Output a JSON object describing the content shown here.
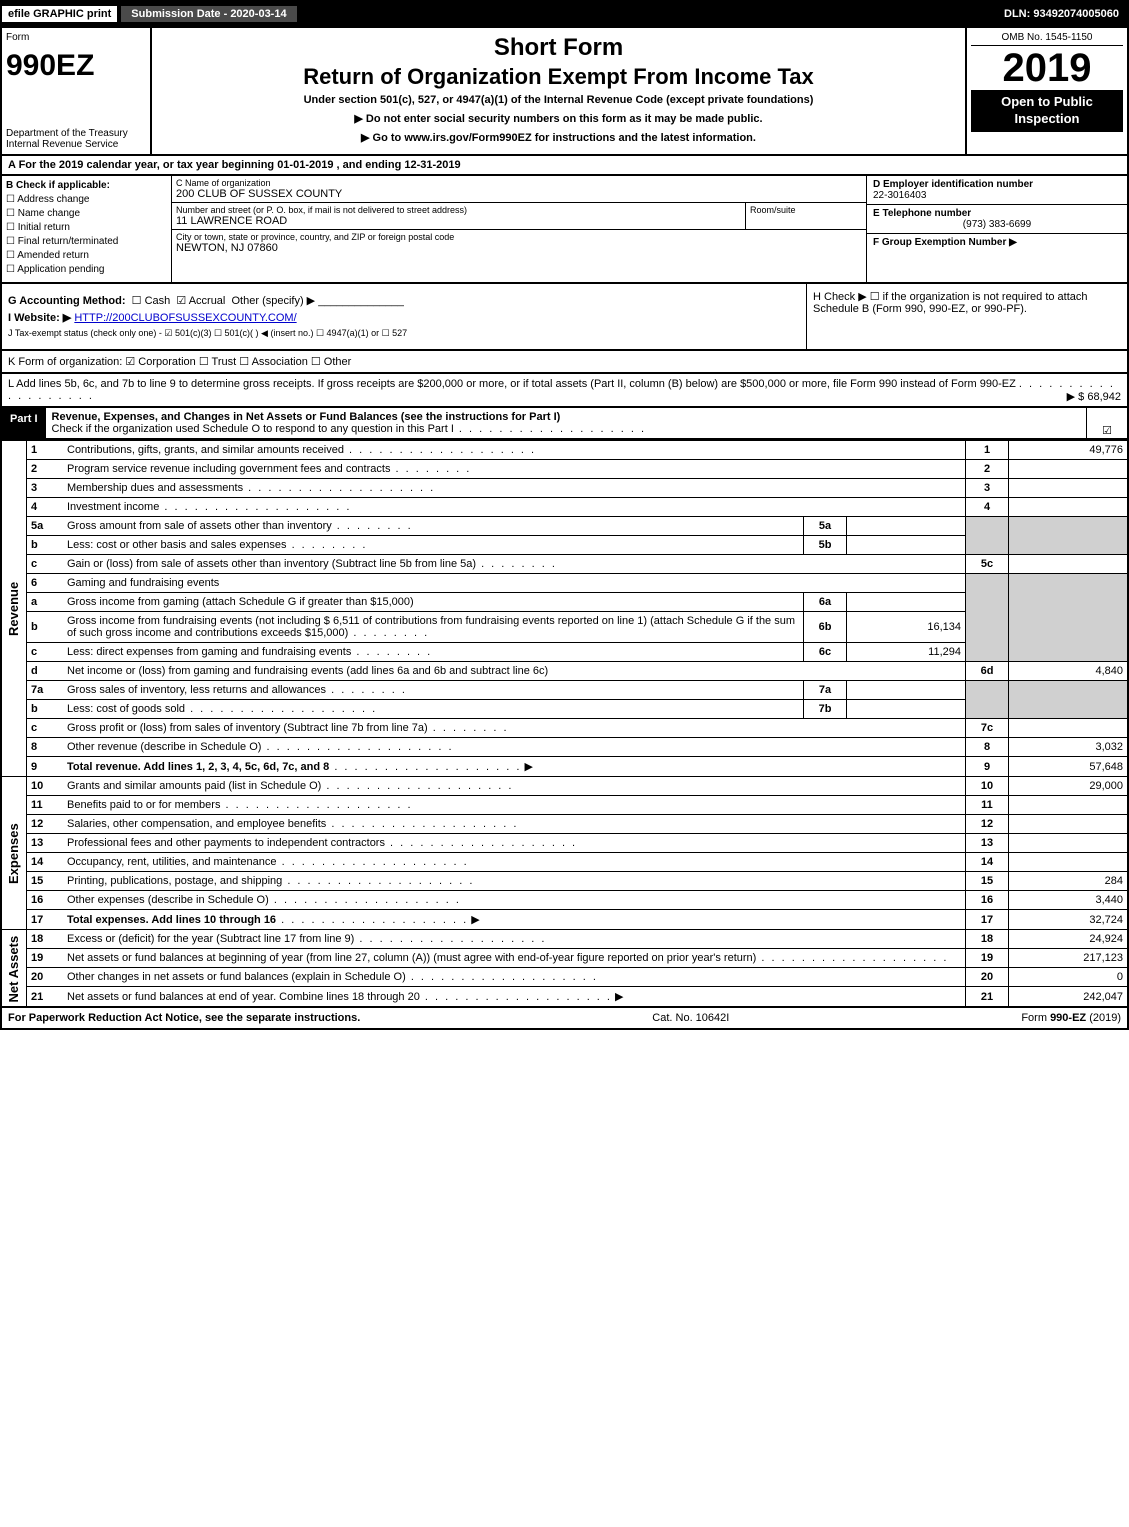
{
  "topbar": {
    "efile": "efile GRAPHIC print",
    "submission": "Submission Date - 2020-03-14",
    "dln": "DLN: 93492074005060"
  },
  "header": {
    "form_word": "Form",
    "form_number": "990EZ",
    "dept": "Department of the Treasury",
    "irs": "Internal Revenue Service",
    "short_form": "Short Form",
    "title": "Return of Organization Exempt From Income Tax",
    "subsection": "Under section 501(c), 527, or 4947(a)(1) of the Internal Revenue Code (except private foundations)",
    "warn1": "▶ Do not enter social security numbers on this form as it may be made public.",
    "warn2": "▶ Go to www.irs.gov/Form990EZ for instructions and the latest information.",
    "omb": "OMB No. 1545-1150",
    "year": "2019",
    "open_public": "Open to Public Inspection"
  },
  "row_a": "A For the 2019 calendar year, or tax year beginning 01-01-2019 , and ending 12-31-2019",
  "col_b": {
    "title": "B Check if applicable:",
    "opts": [
      "Address change",
      "Name change",
      "Initial return",
      "Final return/terminated",
      "Amended return",
      "Application pending"
    ]
  },
  "col_c": {
    "name_lbl": "C Name of organization",
    "name": "200 CLUB OF SUSSEX COUNTY",
    "addr_lbl": "Number and street (or P. O. box, if mail is not delivered to street address)",
    "addr": "11 LAWRENCE ROAD",
    "room_lbl": "Room/suite",
    "room": "",
    "city_lbl": "City or town, state or province, country, and ZIP or foreign postal code",
    "city": "NEWTON, NJ  07860"
  },
  "col_def": {
    "d_lbl": "D Employer identification number",
    "d_val": "22-3016403",
    "e_lbl": "E Telephone number",
    "e_val": "(973) 383-6699",
    "f_lbl": "F Group Exemption Number ▶",
    "f_val": ""
  },
  "g": {
    "label": "G Accounting Method:",
    "cash": "Cash",
    "accrual": "Accrual",
    "other": "Other (specify) ▶"
  },
  "h": "H Check ▶ ☐ if the organization is not required to attach Schedule B (Form 990, 990-EZ, or 990-PF).",
  "i": {
    "label": "I Website: ▶",
    "url": "HTTP://200CLUBOFSUSSEXCOUNTY.COM/"
  },
  "j": "J Tax-exempt status (check only one) - ☑ 501(c)(3) ☐ 501(c)(  ) ◀ (insert no.) ☐ 4947(a)(1) or ☐ 527",
  "k": "K Form of organization:  ☑ Corporation  ☐ Trust  ☐ Association  ☐ Other",
  "l": {
    "text": "L Add lines 5b, 6c, and 7b to line 9 to determine gross receipts. If gross receipts are $200,000 or more, or if total assets (Part II, column (B) below) are $500,000 or more, file Form 990 instead of Form 990-EZ",
    "amount": "▶ $ 68,942"
  },
  "part1": {
    "label": "Part I",
    "title": "Revenue, Expenses, and Changes in Net Assets or Fund Balances (see the instructions for Part I)",
    "sub": "Check if the organization used Schedule O to respond to any question in this Part I"
  },
  "side_labels": {
    "revenue": "Revenue",
    "expenses": "Expenses",
    "net_assets": "Net Assets"
  },
  "lines": {
    "l1": {
      "n": "1",
      "desc": "Contributions, gifts, grants, and similar amounts received",
      "val": "49,776"
    },
    "l2": {
      "n": "2",
      "desc": "Program service revenue including government fees and contracts",
      "val": ""
    },
    "l3": {
      "n": "3",
      "desc": "Membership dues and assessments",
      "val": ""
    },
    "l4": {
      "n": "4",
      "desc": "Investment income",
      "val": ""
    },
    "l5a": {
      "n": "5a",
      "desc": "Gross amount from sale of assets other than inventory",
      "sub": "5a",
      "subval": ""
    },
    "l5b": {
      "n": "b",
      "desc": "Less: cost or other basis and sales expenses",
      "sub": "5b",
      "subval": ""
    },
    "l5c": {
      "n": "c",
      "desc": "Gain or (loss) from sale of assets other than inventory (Subtract line 5b from line 5a)",
      "val": ""
    },
    "l6": {
      "n": "6",
      "desc": "Gaming and fundraising events"
    },
    "l6a": {
      "n": "a",
      "desc": "Gross income from gaming (attach Schedule G if greater than $15,000)",
      "sub": "6a",
      "subval": ""
    },
    "l6b": {
      "n": "b",
      "desc": "Gross income from fundraising events (not including $  6,511  of contributions from fundraising events reported on line 1) (attach Schedule G if the sum of such gross income and contributions exceeds $15,000)",
      "sub": "6b",
      "subval": "16,134"
    },
    "l6c": {
      "n": "c",
      "desc": "Less: direct expenses from gaming and fundraising events",
      "sub": "6c",
      "subval": "11,294"
    },
    "l6d": {
      "n": "d",
      "desc": "Net income or (loss) from gaming and fundraising events (add lines 6a and 6b and subtract line 6c)",
      "val": "4,840"
    },
    "l7a": {
      "n": "7a",
      "desc": "Gross sales of inventory, less returns and allowances",
      "sub": "7a",
      "subval": ""
    },
    "l7b": {
      "n": "b",
      "desc": "Less: cost of goods sold",
      "sub": "7b",
      "subval": ""
    },
    "l7c": {
      "n": "c",
      "desc": "Gross profit or (loss) from sales of inventory (Subtract line 7b from line 7a)",
      "val": ""
    },
    "l8": {
      "n": "8",
      "desc": "Other revenue (describe in Schedule O)",
      "val": "3,032"
    },
    "l9": {
      "n": "9",
      "desc": "Total revenue. Add lines 1, 2, 3, 4, 5c, 6d, 7c, and 8",
      "val": "57,648"
    },
    "l10": {
      "n": "10",
      "desc": "Grants and similar amounts paid (list in Schedule O)",
      "val": "29,000"
    },
    "l11": {
      "n": "11",
      "desc": "Benefits paid to or for members",
      "val": ""
    },
    "l12": {
      "n": "12",
      "desc": "Salaries, other compensation, and employee benefits",
      "val": ""
    },
    "l13": {
      "n": "13",
      "desc": "Professional fees and other payments to independent contractors",
      "val": ""
    },
    "l14": {
      "n": "14",
      "desc": "Occupancy, rent, utilities, and maintenance",
      "val": ""
    },
    "l15": {
      "n": "15",
      "desc": "Printing, publications, postage, and shipping",
      "val": "284"
    },
    "l16": {
      "n": "16",
      "desc": "Other expenses (describe in Schedule O)",
      "val": "3,440"
    },
    "l17": {
      "n": "17",
      "desc": "Total expenses. Add lines 10 through 16",
      "val": "32,724"
    },
    "l18": {
      "n": "18",
      "desc": "Excess or (deficit) for the year (Subtract line 17 from line 9)",
      "val": "24,924"
    },
    "l19": {
      "n": "19",
      "desc": "Net assets or fund balances at beginning of year (from line 27, column (A)) (must agree with end-of-year figure reported on prior year's return)",
      "val": "217,123"
    },
    "l20": {
      "n": "20",
      "desc": "Other changes in net assets or fund balances (explain in Schedule O)",
      "val": "0"
    },
    "l21": {
      "n": "21",
      "desc": "Net assets or fund balances at end of year. Combine lines 18 through 20",
      "val": "242,047"
    }
  },
  "footer": {
    "left": "For Paperwork Reduction Act Notice, see the separate instructions.",
    "center": "Cat. No. 10642I",
    "right": "Form 990-EZ (2019)"
  }
}
